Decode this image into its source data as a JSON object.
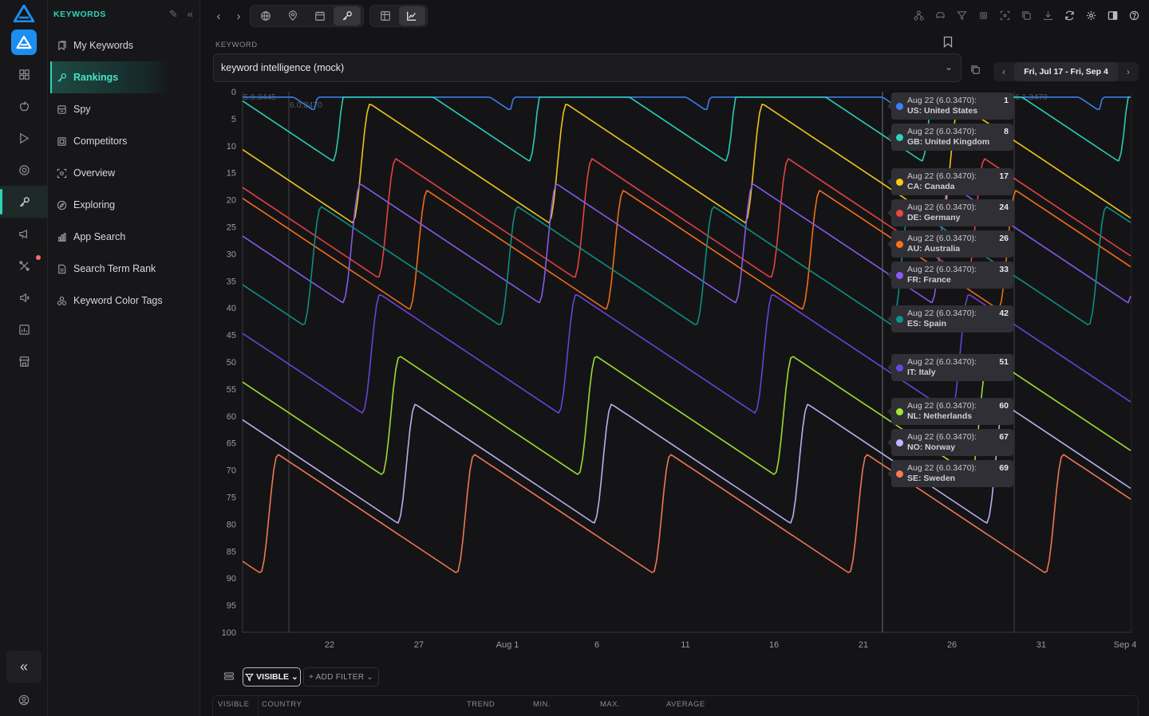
{
  "sidebar": {
    "section_title": "KEYWORDS",
    "items": [
      {
        "label": "My Keywords",
        "icon": "bookmarks-icon"
      },
      {
        "label": "Rankings",
        "icon": "key-icon",
        "active": true
      },
      {
        "label": "Spy",
        "icon": "spy-icon"
      },
      {
        "label": "Competitors",
        "icon": "competitors-icon"
      },
      {
        "label": "Overview",
        "icon": "overview-icon"
      },
      {
        "label": "Exploring",
        "icon": "explore-icon"
      },
      {
        "label": "App Search",
        "icon": "bar-chart-icon"
      },
      {
        "label": "Search Term Rank",
        "icon": "document-icon"
      },
      {
        "label": "Keyword Color Tags",
        "icon": "tags-icon"
      }
    ]
  },
  "keyword": {
    "label": "KEYWORD",
    "value": "keyword intelligence (mock)"
  },
  "date_range": {
    "value": "Fri, Jul 17 - Fri, Sep 4"
  },
  "colors": {
    "accent": "#2fd3b8",
    "background": "#141416"
  },
  "chart_data": {
    "type": "line",
    "y_reversed": true,
    "ylim": [
      0,
      100
    ],
    "yticks": [
      "0",
      "5",
      "10",
      "15",
      "20",
      "25",
      "30",
      "35",
      "40",
      "45",
      "50",
      "55",
      "60",
      "65",
      "70",
      "75",
      "80",
      "85",
      "90",
      "95",
      "100"
    ],
    "xticks": [
      "22",
      "27",
      "Aug 1",
      "6",
      "11",
      "16",
      "21",
      "26",
      "31",
      "Sep 4"
    ],
    "annotations": [
      "5.9.3445",
      "6.0.3470",
      "6.1.3470"
    ],
    "series": [
      {
        "code": "US",
        "name": "United States",
        "color": "#3b82f6",
        "aug22": 1
      },
      {
        "code": "GB",
        "name": "United Kingdom",
        "color": "#2dd4bf",
        "aug22": 8
      },
      {
        "code": "CA",
        "name": "Canada",
        "color": "#facc15",
        "aug22": 17
      },
      {
        "code": "DE",
        "name": "Germany",
        "color": "#ef4444",
        "aug22": 24
      },
      {
        "code": "AU",
        "name": "Australia",
        "color": "#f97316",
        "aug22": 26
      },
      {
        "code": "FR",
        "name": "France",
        "color": "#8b5cf6",
        "aug22": 33
      },
      {
        "code": "ES",
        "name": "Spain",
        "color": "#0d9488",
        "aug22": 42
      },
      {
        "code": "IT",
        "name": "Italy",
        "color": "#6d45e0",
        "aug22": 51
      },
      {
        "code": "NL",
        "name": "Netherlands",
        "color": "#a3e635",
        "aug22": 60
      },
      {
        "code": "NO",
        "name": "Norway",
        "color": "#c4b5fd",
        "aug22": 67
      },
      {
        "code": "SE",
        "name": "Sweden",
        "color": "#fb7a56",
        "aug22": 69
      }
    ]
  },
  "tooltips": [
    {
      "date": "Aug 22 (6.0.3470):",
      "rank": "1",
      "country": "US: United States",
      "color": "#3b82f6"
    },
    {
      "date": "Aug 22 (6.0.3470):",
      "rank": "8",
      "country": "GB: United Kingdom",
      "color": "#2dd4bf"
    },
    {
      "date": "Aug 22 (6.0.3470):",
      "rank": "17",
      "country": "CA: Canada",
      "color": "#facc15"
    },
    {
      "date": "Aug 22 (6.0.3470):",
      "rank": "24",
      "country": "DE: Germany",
      "color": "#ef4444"
    },
    {
      "date": "Aug 22 (6.0.3470):",
      "rank": "26",
      "country": "AU: Australia",
      "color": "#f97316"
    },
    {
      "date": "Aug 22 (6.0.3470):",
      "rank": "33",
      "country": "FR: France",
      "color": "#8b5cf6"
    },
    {
      "date": "Aug 22 (6.0.3470):",
      "rank": "42",
      "country": "ES: Spain",
      "color": "#0d9488"
    },
    {
      "date": "Aug 22 (6.0.3470):",
      "rank": "51",
      "country": "IT: Italy",
      "color": "#6d45e0"
    },
    {
      "date": "Aug 22 (6.0.3470):",
      "rank": "60",
      "country": "NL: Netherlands",
      "color": "#a3e635"
    },
    {
      "date": "Aug 22 (6.0.3470):",
      "rank": "67",
      "country": "NO: Norway",
      "color": "#c4b5fd"
    },
    {
      "date": "Aug 22 (6.0.3470):",
      "rank": "69",
      "country": "SE: Sweden",
      "color": "#fb7a56"
    }
  ],
  "filters": {
    "visible_label": "VISIBLE",
    "add_filter_label": "+ ADD FILTER"
  },
  "table": {
    "columns": [
      "VISIBLE",
      "COUNTRY",
      "TREND",
      "MIN.",
      "MAX.",
      "AVERAGE"
    ]
  }
}
